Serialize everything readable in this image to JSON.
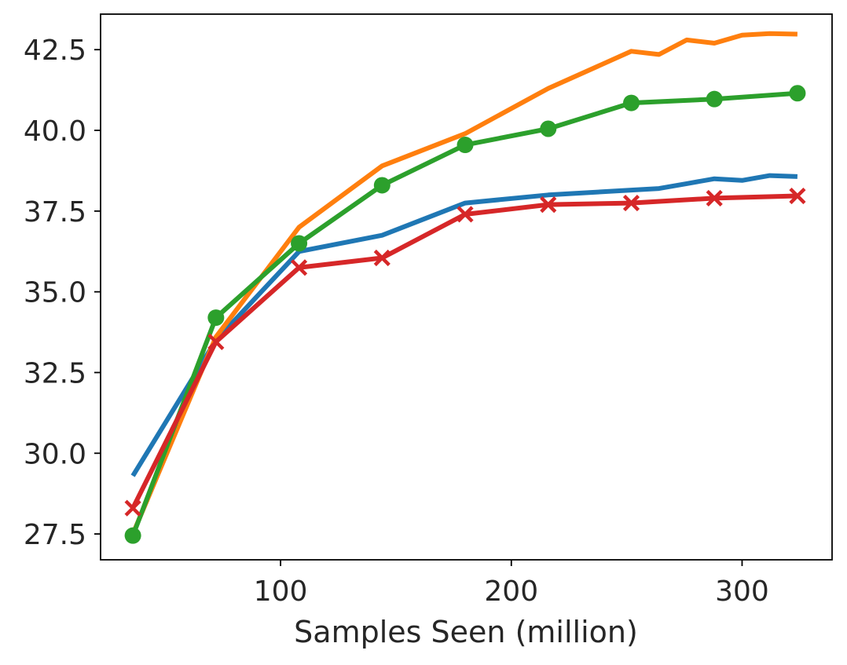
{
  "chart_data": {
    "type": "line",
    "title": "",
    "xlabel": "Samples Seen (million)",
    "ylabel": "",
    "xlim": [
      22,
      339
    ],
    "ylim": [
      26.7,
      43.6
    ],
    "xticks": [
      100,
      200,
      300
    ],
    "xtick_labels": [
      "100",
      "200",
      "300"
    ],
    "yticks": [
      27.5,
      30.0,
      32.5,
      35.0,
      37.5,
      40.0,
      42.5
    ],
    "ytick_labels": [
      "27.5",
      "30.0",
      "32.5",
      "35.0",
      "37.5",
      "40.0",
      "42.5"
    ],
    "grid": false,
    "series": [
      {
        "name": "blue",
        "color": "#1f77b4",
        "marker": "none",
        "x": [
          36,
          72,
          108,
          144,
          180,
          216,
          252,
          264,
          276,
          288,
          300,
          312,
          324
        ],
        "y": [
          29.3,
          33.5,
          36.25,
          36.75,
          37.75,
          38.0,
          38.15,
          38.2,
          38.35,
          38.5,
          38.45,
          38.6,
          38.57
        ]
      },
      {
        "name": "orange",
        "color": "#ff7f0e",
        "marker": "none",
        "x": [
          36,
          72,
          108,
          144,
          180,
          216,
          252,
          264,
          276,
          288,
          300,
          312,
          324
        ],
        "y": [
          27.5,
          33.6,
          37.0,
          38.9,
          39.9,
          41.3,
          42.45,
          42.35,
          42.8,
          42.7,
          42.95,
          43.0,
          42.98
        ]
      },
      {
        "name": "green",
        "color": "#2ca02c",
        "marker": "circle",
        "x": [
          36,
          72,
          108,
          144,
          180,
          216,
          252,
          288,
          324
        ],
        "y": [
          27.45,
          34.2,
          36.5,
          38.3,
          39.55,
          40.05,
          40.85,
          40.97,
          41.15
        ]
      },
      {
        "name": "red",
        "color": "#d62728",
        "marker": "x",
        "x": [
          36,
          72,
          108,
          144,
          180,
          216,
          252,
          288,
          324
        ],
        "y": [
          28.3,
          33.45,
          35.75,
          36.05,
          37.4,
          37.7,
          37.75,
          37.9,
          37.97
        ]
      }
    ]
  }
}
